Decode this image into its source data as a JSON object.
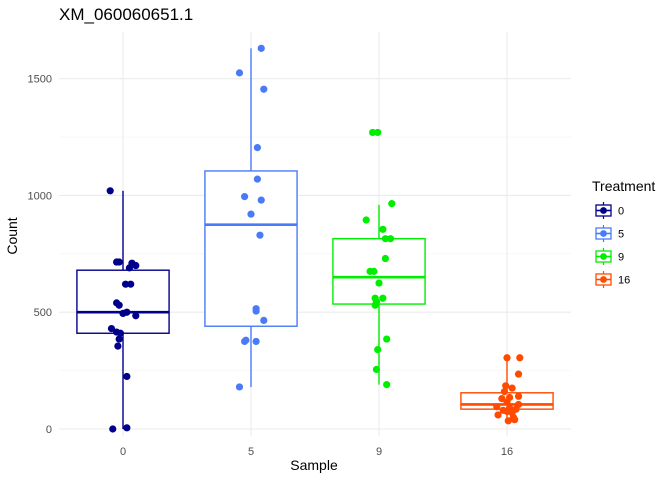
{
  "chart_data": {
    "type": "box",
    "title": "XM_060060651.1",
    "xlabel": "Sample",
    "ylabel": "Count",
    "categories": [
      "0",
      "5",
      "9",
      "16"
    ],
    "ylim": [
      -30,
      1700
    ],
    "yticks": [
      0,
      500,
      1000,
      1500
    ],
    "grid": true,
    "legend": {
      "title": "Treatment",
      "placement": "right"
    },
    "series": [
      {
        "name": "0",
        "color": "#00008B",
        "box": {
          "q1": 410,
          "median": 500,
          "q3": 680,
          "whisker_low": 0,
          "whisker_high": 1020
        },
        "points": [
          {
            "dx": -0.1,
            "y": 1020
          },
          {
            "dx": -0.05,
            "y": 715
          },
          {
            "dx": -0.03,
            "y": 715
          },
          {
            "dx": 0.07,
            "y": 710
          },
          {
            "dx": 0.1,
            "y": 700
          },
          {
            "dx": 0.05,
            "y": 690
          },
          {
            "dx": 0.02,
            "y": 620
          },
          {
            "dx": 0.06,
            "y": 620
          },
          {
            "dx": -0.05,
            "y": 540
          },
          {
            "dx": -0.03,
            "y": 530
          },
          {
            "dx": 0.03,
            "y": 500
          },
          {
            "dx": 0.0,
            "y": 495
          },
          {
            "dx": 0.1,
            "y": 485
          },
          {
            "dx": -0.09,
            "y": 430
          },
          {
            "dx": -0.05,
            "y": 415
          },
          {
            "dx": -0.02,
            "y": 410
          },
          {
            "dx": -0.03,
            "y": 385
          },
          {
            "dx": -0.04,
            "y": 355
          },
          {
            "dx": 0.03,
            "y": 225
          },
          {
            "dx": -0.08,
            "y": 0
          },
          {
            "dx": 0.03,
            "y": 5
          }
        ]
      },
      {
        "name": "5",
        "color": "#4A7BF7",
        "box": {
          "q1": 440,
          "median": 875,
          "q3": 1105,
          "whisker_low": 180,
          "whisker_high": 1630
        },
        "points": [
          {
            "dx": 0.08,
            "y": 1630
          },
          {
            "dx": -0.09,
            "y": 1525
          },
          {
            "dx": 0.1,
            "y": 1455
          },
          {
            "dx": 0.05,
            "y": 1205
          },
          {
            "dx": 0.05,
            "y": 1070
          },
          {
            "dx": -0.05,
            "y": 995
          },
          {
            "dx": 0.08,
            "y": 980
          },
          {
            "dx": 0.0,
            "y": 920
          },
          {
            "dx": 0.07,
            "y": 830
          },
          {
            "dx": 0.04,
            "y": 515
          },
          {
            "dx": 0.04,
            "y": 505
          },
          {
            "dx": 0.1,
            "y": 465
          },
          {
            "dx": -0.04,
            "y": 380
          },
          {
            "dx": -0.05,
            "y": 375
          },
          {
            "dx": 0.04,
            "y": 375
          },
          {
            "dx": -0.09,
            "y": 180
          }
        ]
      },
      {
        "name": "9",
        "color": "#00EE00",
        "box": {
          "q1": 535,
          "median": 650,
          "q3": 815,
          "whisker_low": 190,
          "whisker_high": 960
        },
        "points": [
          {
            "dx": -0.05,
            "y": 1270
          },
          {
            "dx": -0.01,
            "y": 1270
          },
          {
            "dx": 0.1,
            "y": 965
          },
          {
            "dx": -0.1,
            "y": 895
          },
          {
            "dx": 0.03,
            "y": 855
          },
          {
            "dx": 0.05,
            "y": 815
          },
          {
            "dx": 0.09,
            "y": 815
          },
          {
            "dx": 0.05,
            "y": 730
          },
          {
            "dx": -0.07,
            "y": 675
          },
          {
            "dx": -0.04,
            "y": 675
          },
          {
            "dx": 0.0,
            "y": 625
          },
          {
            "dx": -0.03,
            "y": 560
          },
          {
            "dx": 0.03,
            "y": 560
          },
          {
            "dx": -0.02,
            "y": 545
          },
          {
            "dx": -0.03,
            "y": 530
          },
          {
            "dx": 0.06,
            "y": 385
          },
          {
            "dx": -0.01,
            "y": 340
          },
          {
            "dx": -0.02,
            "y": 255
          },
          {
            "dx": 0.06,
            "y": 190
          }
        ]
      },
      {
        "name": "16",
        "color": "#FF4A00",
        "box": {
          "q1": 85,
          "median": 105,
          "q3": 155,
          "whisker_low": 30,
          "whisker_high": 300
        },
        "points": [
          {
            "dx": 0.0,
            "y": 305
          },
          {
            "dx": 0.1,
            "y": 305
          },
          {
            "dx": 0.09,
            "y": 235
          },
          {
            "dx": -0.01,
            "y": 185
          },
          {
            "dx": 0.04,
            "y": 175
          },
          {
            "dx": -0.02,
            "y": 160
          },
          {
            "dx": 0.09,
            "y": 140
          },
          {
            "dx": 0.02,
            "y": 135
          },
          {
            "dx": -0.04,
            "y": 130
          },
          {
            "dx": 0.0,
            "y": 115
          },
          {
            "dx": 0.09,
            "y": 105
          },
          {
            "dx": -0.08,
            "y": 95
          },
          {
            "dx": 0.02,
            "y": 90
          },
          {
            "dx": 0.07,
            "y": 85
          },
          {
            "dx": -0.03,
            "y": 80
          },
          {
            "dx": 0.0,
            "y": 75
          },
          {
            "dx": 0.04,
            "y": 70
          },
          {
            "dx": -0.07,
            "y": 60
          },
          {
            "dx": 0.05,
            "y": 50
          },
          {
            "dx": 0.06,
            "y": 40
          },
          {
            "dx": 0.01,
            "y": 35
          }
        ]
      }
    ]
  }
}
